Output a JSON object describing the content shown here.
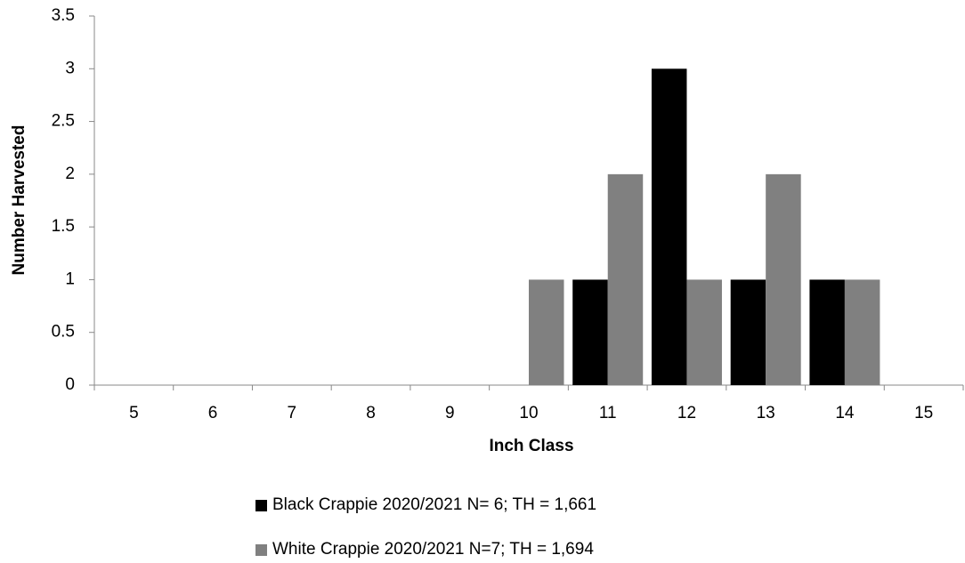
{
  "chart_data": {
    "type": "bar",
    "x_label": "Inch Class",
    "y_label": "Number Harvested",
    "categories": [
      "5",
      "6",
      "7",
      "8",
      "9",
      "10",
      "11",
      "12",
      "13",
      "14",
      "15"
    ],
    "series": [
      {
        "name": "Black Crappie 2020/2021 N= 6; TH = 1,661",
        "color": "#000000",
        "values": [
          0,
          0,
          0,
          0,
          0,
          0,
          1,
          3,
          1,
          1,
          0
        ]
      },
      {
        "name": "White Crappie 2020/2021 N=7; TH = 1,694",
        "color": "#808080",
        "values": [
          0,
          0,
          0,
          0,
          0,
          1,
          2,
          1,
          2,
          1,
          0
        ]
      }
    ],
    "ylim": [
      0,
      3.5
    ],
    "yticks": [
      0,
      0.5,
      1,
      1.5,
      2,
      2.5,
      3,
      3.5
    ],
    "legend": "bottom"
  }
}
